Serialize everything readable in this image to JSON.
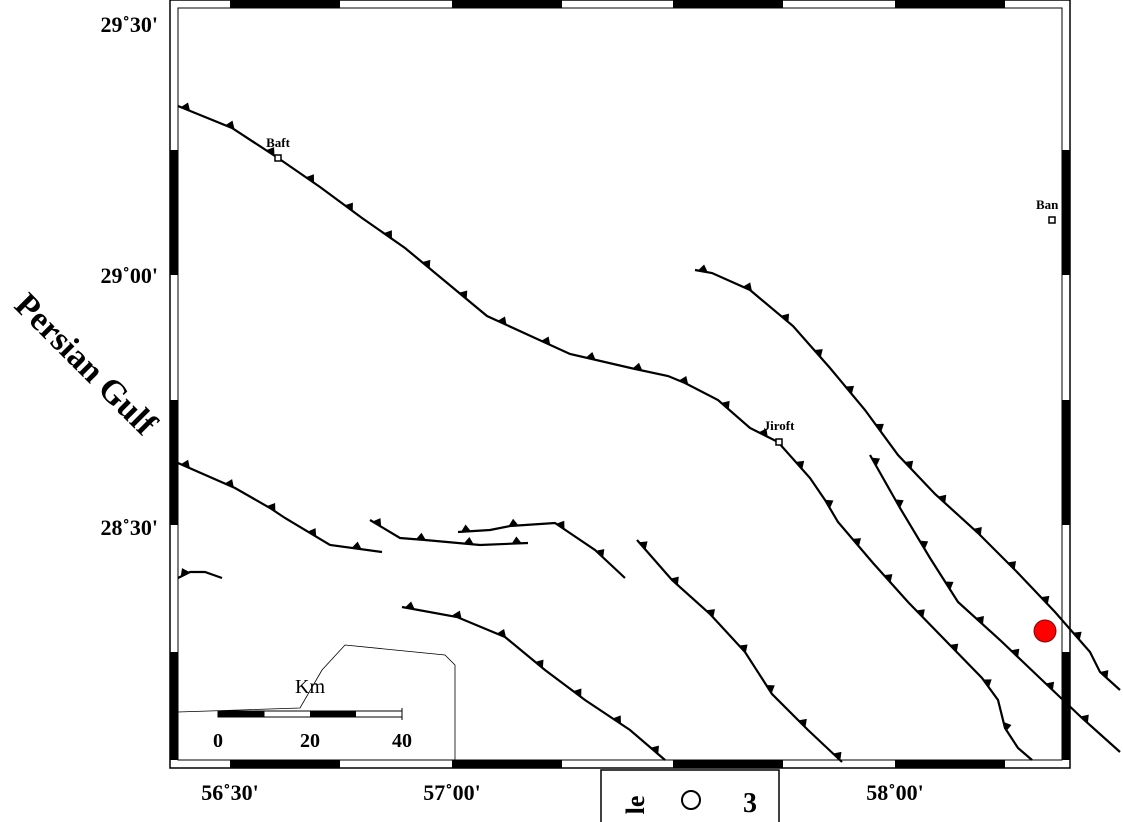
{
  "frame": {
    "lat_labels": [
      "29˚30'",
      "29˚00'",
      "28˚30'"
    ],
    "lon_labels": [
      "56˚30'",
      "57˚00'",
      "58˚00'"
    ]
  },
  "places": [
    "Baft",
    "Ban",
    "Jiroft"
  ],
  "sea_label": "Persian Gulf",
  "scale": {
    "unit": "Km",
    "labels": [
      0,
      20,
      40
    ]
  },
  "legend": {
    "title": "le",
    "value": "3"
  }
}
